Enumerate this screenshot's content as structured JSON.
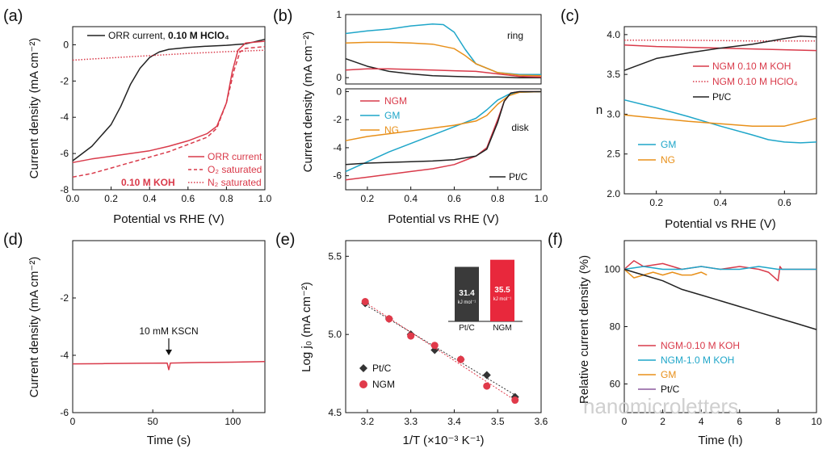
{
  "figure": {
    "watermark": "nanomicroletters",
    "colors": {
      "black": "#222222",
      "red": "#d93a4a",
      "cyan": "#1fa6c9",
      "orange": "#e8901a",
      "purple": "#8c5a9e",
      "darkbar": "#3a3a3a",
      "redbar": "#e8283c"
    }
  },
  "chart_data": [
    {
      "id": "a",
      "type": "line",
      "panel": "(a)",
      "xlabel": "Potential vs RHE (V)",
      "ylabel": "Current density (mA cm⁻²)",
      "xlim": [
        0,
        1.0
      ],
      "ylim": [
        -8,
        1
      ],
      "xticks": [
        "0.0",
        "0.2",
        "0.4",
        "0.6",
        "0.8",
        "1.0"
      ],
      "yticks": [
        "0",
        "-2",
        "-4",
        "-6",
        "-8"
      ],
      "legend_top": {
        "prefix": "ORR current, ",
        "bold": "0.10 M HClO₄"
      },
      "legend_bottom": [
        "ORR current",
        "O₂ saturated",
        "N₂ saturated"
      ],
      "annotation": "0.10 M KOH",
      "series": [
        {
          "name": "ORR current 0.10 M HClO4",
          "style": "solid",
          "color": "#222222",
          "x": [
            0,
            0.1,
            0.2,
            0.25,
            0.3,
            0.35,
            0.4,
            0.45,
            0.5,
            0.6,
            0.7,
            0.8,
            0.9,
            1.0
          ],
          "y": [
            -6.4,
            -5.6,
            -4.4,
            -3.4,
            -2.2,
            -1.3,
            -0.7,
            -0.4,
            -0.25,
            -0.15,
            -0.08,
            -0.03,
            0.05,
            0.3
          ]
        },
        {
          "name": "N2 saturated HClO4",
          "style": "dotted",
          "color": "#d93a4a",
          "x": [
            0,
            0.2,
            0.4,
            0.6,
            0.8,
            1.0
          ],
          "y": [
            -0.85,
            -0.72,
            -0.6,
            -0.48,
            -0.38,
            -0.3
          ]
        },
        {
          "name": "ORR current 0.10 M KOH",
          "style": "solid",
          "color": "#d93a4a",
          "x": [
            0,
            0.1,
            0.2,
            0.3,
            0.4,
            0.5,
            0.6,
            0.7,
            0.75,
            0.8,
            0.83,
            0.86,
            0.9,
            1.0
          ],
          "y": [
            -6.5,
            -6.3,
            -6.15,
            -6.0,
            -5.85,
            -5.6,
            -5.3,
            -4.9,
            -4.5,
            -3.2,
            -1.5,
            -0.3,
            0.1,
            0.2
          ]
        },
        {
          "name": "O2 saturated KOH",
          "style": "dashed",
          "color": "#d93a4a",
          "x": [
            0,
            0.1,
            0.2,
            0.3,
            0.4,
            0.5,
            0.6,
            0.7,
            0.75,
            0.8,
            0.84,
            0.87,
            0.9,
            1.0
          ],
          "y": [
            -7.3,
            -7.1,
            -6.8,
            -6.5,
            -6.2,
            -5.9,
            -5.5,
            -5.1,
            -4.6,
            -3.2,
            -1.4,
            -0.4,
            -0.2,
            -0.1
          ]
        }
      ]
    },
    {
      "id": "b_ring",
      "type": "line",
      "panel": "(b)",
      "ylabel": "Current density (mA cm⁻²)",
      "label": "ring",
      "xlim": [
        0.1,
        1.0
      ],
      "ylim": [
        -0.1,
        1.0
      ],
      "yticks": [
        "0",
        "1"
      ],
      "series": [
        {
          "name": "GM",
          "color": "#1fa6c9",
          "x": [
            0.1,
            0.2,
            0.3,
            0.4,
            0.5,
            0.55,
            0.6,
            0.65,
            0.7,
            0.8,
            0.9,
            1.0
          ],
          "y": [
            0.7,
            0.74,
            0.77,
            0.82,
            0.85,
            0.84,
            0.72,
            0.45,
            0.22,
            0.08,
            0.05,
            0.05
          ]
        },
        {
          "name": "NG",
          "color": "#e8901a",
          "x": [
            0.1,
            0.2,
            0.3,
            0.4,
            0.5,
            0.6,
            0.65,
            0.7,
            0.8,
            0.9,
            1.0
          ],
          "y": [
            0.55,
            0.56,
            0.56,
            0.55,
            0.53,
            0.46,
            0.35,
            0.22,
            0.08,
            0.04,
            0.03
          ]
        },
        {
          "name": "Pt/C",
          "color": "#222222",
          "x": [
            0.1,
            0.2,
            0.3,
            0.4,
            0.5,
            0.6,
            0.7,
            0.8,
            0.9,
            1.0
          ],
          "y": [
            0.3,
            0.18,
            0.1,
            0.06,
            0.03,
            0.02,
            0.01,
            0.01,
            0.0,
            0.0
          ]
        },
        {
          "name": "NGM",
          "color": "#d93a4a",
          "x": [
            0.1,
            0.2,
            0.3,
            0.4,
            0.5,
            0.6,
            0.7,
            0.8,
            0.9,
            1.0
          ],
          "y": [
            0.12,
            0.14,
            0.14,
            0.13,
            0.12,
            0.11,
            0.1,
            0.06,
            0.02,
            0.01
          ]
        }
      ]
    },
    {
      "id": "b_disk",
      "type": "line",
      "xlabel": "Potential vs RHE (V)",
      "label": "disk",
      "xlim": [
        0.1,
        1.0
      ],
      "ylim": [
        -7,
        0.2
      ],
      "xticks": [
        "0.2",
        "0.4",
        "0.6",
        "0.8",
        "1.0"
      ],
      "yticks": [
        "0",
        "-2",
        "-4",
        "-6"
      ],
      "legend": [
        "NGM",
        "GM",
        "NG"
      ],
      "legend_corner": "Pt/C",
      "series": [
        {
          "name": "NGM",
          "color": "#d93a4a",
          "x": [
            0.1,
            0.2,
            0.3,
            0.4,
            0.5,
            0.6,
            0.65,
            0.7,
            0.75,
            0.8,
            0.83,
            0.86,
            0.9,
            1.0
          ],
          "y": [
            -6.3,
            -6.1,
            -5.9,
            -5.7,
            -5.5,
            -5.2,
            -4.9,
            -4.6,
            -4.0,
            -2.0,
            -0.7,
            -0.1,
            0,
            0
          ]
        },
        {
          "name": "GM",
          "color": "#1fa6c9",
          "x": [
            0.1,
            0.2,
            0.3,
            0.4,
            0.5,
            0.6,
            0.65,
            0.7,
            0.75,
            0.8,
            0.85,
            0.9,
            1.0
          ],
          "y": [
            -5.7,
            -5.0,
            -4.3,
            -3.7,
            -3.1,
            -2.5,
            -2.2,
            -1.9,
            -1.3,
            -0.6,
            -0.2,
            -0.05,
            0
          ]
        },
        {
          "name": "NG",
          "color": "#e8901a",
          "x": [
            0.1,
            0.2,
            0.3,
            0.4,
            0.5,
            0.6,
            0.7,
            0.75,
            0.8,
            0.85,
            0.9,
            1.0
          ],
          "y": [
            -3.5,
            -3.2,
            -3.0,
            -2.8,
            -2.6,
            -2.4,
            -2.1,
            -1.7,
            -0.9,
            -0.3,
            -0.05,
            0
          ]
        },
        {
          "name": "Pt/C",
          "color": "#222222",
          "x": [
            0.1,
            0.2,
            0.3,
            0.4,
            0.5,
            0.6,
            0.7,
            0.75,
            0.8,
            0.83,
            0.86,
            0.9,
            1.0
          ],
          "y": [
            -5.2,
            -5.1,
            -5.05,
            -5.0,
            -4.95,
            -4.85,
            -4.6,
            -4.1,
            -2.2,
            -0.7,
            -0.1,
            0,
            0
          ]
        }
      ]
    },
    {
      "id": "c",
      "type": "line",
      "panel": "(c)",
      "ylabel": "n",
      "xlabel": "Potential vs RHE (V)",
      "xlim": [
        0.1,
        0.7
      ],
      "ylim": [
        2.0,
        4.1
      ],
      "xticks": [
        "0.2",
        "0.4",
        "0.6"
      ],
      "yticks": [
        "2.0",
        "2.5",
        "3.0",
        "3.5",
        "4.0"
      ],
      "legend_top": [
        "NGM 0.10 M KOH",
        "NGM 0.10 M HClO₄",
        "Pt/C"
      ],
      "legend_bottom": [
        "GM",
        "NG"
      ],
      "series": [
        {
          "name": "NGM 0.10 M KOH",
          "style": "solid",
          "color": "#d93a4a",
          "x": [
            0.1,
            0.2,
            0.3,
            0.4,
            0.5,
            0.6,
            0.7
          ],
          "y": [
            3.87,
            3.85,
            3.84,
            3.83,
            3.82,
            3.81,
            3.8
          ]
        },
        {
          "name": "NGM 0.10 M HClO4",
          "style": "dotted",
          "color": "#d93a4a",
          "x": [
            0.1,
            0.3,
            0.5,
            0.7
          ],
          "y": [
            3.93,
            3.93,
            3.92,
            3.92
          ]
        },
        {
          "name": "Pt/C",
          "style": "solid",
          "color": "#222222",
          "x": [
            0.1,
            0.2,
            0.3,
            0.4,
            0.5,
            0.6,
            0.65,
            0.7
          ],
          "y": [
            3.55,
            3.7,
            3.77,
            3.83,
            3.88,
            3.95,
            3.98,
            3.97
          ]
        },
        {
          "name": "GM",
          "style": "solid",
          "color": "#1fa6c9",
          "x": [
            0.1,
            0.2,
            0.3,
            0.4,
            0.5,
            0.55,
            0.6,
            0.65,
            0.7
          ],
          "y": [
            3.18,
            3.08,
            2.97,
            2.85,
            2.74,
            2.68,
            2.65,
            2.64,
            2.65
          ]
        },
        {
          "name": "NG",
          "style": "solid",
          "color": "#e8901a",
          "x": [
            0.1,
            0.2,
            0.3,
            0.4,
            0.5,
            0.6,
            0.7
          ],
          "y": [
            2.99,
            2.95,
            2.91,
            2.88,
            2.85,
            2.85,
            2.95
          ]
        }
      ]
    },
    {
      "id": "d",
      "type": "line",
      "panel": "(d)",
      "xlabel": "Time (s)",
      "ylabel": "Current density (mA cm⁻²)",
      "xlim": [
        0,
        120
      ],
      "ylim": [
        -6,
        0
      ],
      "xticks": [
        "0",
        "50",
        "100"
      ],
      "yticks": [
        "-2",
        "-4",
        "-6"
      ],
      "annotation": "10 mM KSCN",
      "annotation_x": 60,
      "series": [
        {
          "name": "NGM",
          "color": "#d93a4a",
          "x": [
            0,
            20,
            40,
            59,
            60,
            61,
            80,
            100,
            120
          ],
          "y": [
            -4.3,
            -4.29,
            -4.28,
            -4.27,
            -4.5,
            -4.27,
            -4.25,
            -4.24,
            -4.22
          ]
        }
      ]
    },
    {
      "id": "e",
      "type": "scatter",
      "panel": "(e)",
      "xlabel": "1/T (×10⁻³ K⁻¹)",
      "ylabel": "Log j₀ (mA cm⁻²)",
      "xlim": [
        3.15,
        3.6
      ],
      "ylim": [
        4.5,
        5.6
      ],
      "xticks": [
        "3.2",
        "3.3",
        "3.4",
        "3.5",
        "3.6"
      ],
      "yticks": [
        "4.5",
        "5.0",
        "5.5"
      ],
      "series": [
        {
          "name": "Pt/C",
          "marker": "diamond",
          "color": "#333333",
          "x": [
            3.195,
            3.25,
            3.3,
            3.355,
            3.415,
            3.475,
            3.54
          ],
          "y": [
            5.2,
            5.1,
            5.0,
            4.9,
            4.84,
            4.74,
            4.6
          ]
        },
        {
          "name": "NGM",
          "marker": "circle",
          "color": "#e03a4a",
          "x": [
            3.195,
            3.25,
            3.3,
            3.355,
            3.415,
            3.475,
            3.54
          ],
          "y": [
            5.21,
            5.1,
            4.99,
            4.93,
            4.84,
            4.67,
            4.58
          ]
        }
      ],
      "inset": {
        "type": "bar",
        "categories": [
          "Pt/C",
          "NGM"
        ],
        "values": [
          31.4,
          35.5
        ],
        "value_labels": [
          "31.4",
          "35.5"
        ],
        "unit": "kJ mol⁻¹"
      }
    },
    {
      "id": "f",
      "type": "line",
      "panel": "(f)",
      "xlabel": "Time (h)",
      "ylabel": "Relative current density (%)",
      "xlim": [
        0,
        10
      ],
      "ylim": [
        50,
        110
      ],
      "xticks": [
        "0",
        "2",
        "4",
        "6",
        "8",
        "10"
      ],
      "yticks": [
        "60",
        "80",
        "100"
      ],
      "legend": [
        "NGM-0.10 M KOH",
        "NGM-1.0 M KOH",
        "GM",
        "Pt/C"
      ],
      "series": [
        {
          "name": "NGM-0.10 M KOH",
          "color": "#d93a4a",
          "x": [
            0,
            0.5,
            1,
            2,
            3,
            4,
            5,
            6,
            7,
            7.5,
            8,
            8.1,
            8.2,
            9,
            10
          ],
          "y": [
            100,
            103,
            101,
            102,
            100,
            101,
            100,
            101,
            100,
            99,
            96,
            101,
            100,
            100,
            100
          ]
        },
        {
          "name": "NGM-1.0 M KOH",
          "color": "#1fa6c9",
          "x": [
            0,
            1,
            2,
            3,
            4,
            5,
            6,
            7,
            8,
            9,
            10
          ],
          "y": [
            100,
            101,
            100,
            100,
            101,
            100,
            100,
            101,
            100,
            100,
            100
          ]
        },
        {
          "name": "GM",
          "color": "#e8901a",
          "x": [
            0,
            0.5,
            1,
            1.5,
            2,
            2.5,
            3,
            3.5,
            4,
            4.3
          ],
          "y": [
            100,
            97,
            98,
            99,
            98,
            99,
            98,
            98,
            99,
            98
          ]
        },
        {
          "name": "Pt/C",
          "color": "#222222",
          "x": [
            0,
            1,
            2,
            3,
            4,
            5,
            6,
            7,
            8,
            9,
            10
          ],
          "y": [
            100,
            98,
            96,
            93,
            91,
            89,
            87,
            85,
            83,
            81,
            79
          ]
        }
      ]
    }
  ]
}
